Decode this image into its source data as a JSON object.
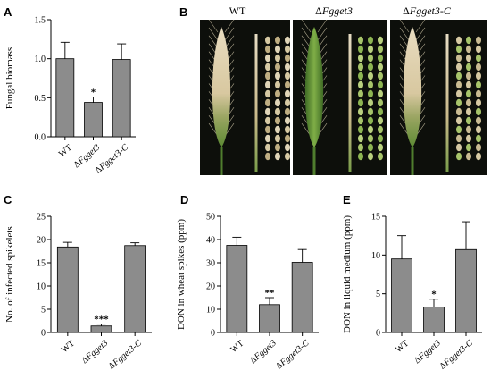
{
  "colors": {
    "bar_fill": "#8c8c8c",
    "photo_bg": "#0d0f0b"
  },
  "chart_data": [
    {
      "panel": "A",
      "type": "bar",
      "categories": [
        "WT",
        "ΔFgget3",
        "ΔFgget3-C"
      ],
      "values": [
        1.0,
        0.44,
        0.99
      ],
      "errors": [
        0.21,
        0.07,
        0.2
      ],
      "significance": [
        "",
        "*",
        ""
      ],
      "ylabel": "Fungal biomass",
      "ylim": [
        0,
        1.5
      ],
      "yticks": [
        0.0,
        0.5,
        1.0,
        1.5
      ],
      "ytick_labels": [
        "0.0",
        "0.5",
        "1.0",
        "1.5"
      ]
    },
    {
      "panel": "C",
      "type": "bar",
      "categories": [
        "WT",
        "ΔFgget3",
        "ΔFgget3-C"
      ],
      "values": [
        18.4,
        1.4,
        18.7
      ],
      "errors": [
        1.0,
        0.4,
        0.6
      ],
      "significance": [
        "",
        "***",
        ""
      ],
      "ylabel": "No. of infected spikelets",
      "ylim": [
        0,
        25
      ],
      "yticks": [
        0,
        5,
        10,
        15,
        20,
        25
      ],
      "ytick_labels": [
        "0",
        "5",
        "10",
        "15",
        "20",
        "25"
      ]
    },
    {
      "panel": "D",
      "type": "bar",
      "categories": [
        "WT",
        "ΔFgget3",
        "ΔFgget3-C"
      ],
      "values": [
        37.5,
        12.0,
        30.2
      ],
      "errors": [
        3.5,
        3.0,
        5.5
      ],
      "significance": [
        "",
        "**",
        ""
      ],
      "ylabel": "DON  in wheat spikes (ppm)",
      "ylim": [
        0,
        50
      ],
      "yticks": [
        0,
        10,
        20,
        30,
        40,
        50
      ],
      "ytick_labels": [
        "0",
        "10",
        "20",
        "30",
        "40",
        "50"
      ]
    },
    {
      "panel": "E",
      "type": "bar",
      "categories": [
        "WT",
        "ΔFgget3",
        "ΔFgget3-C"
      ],
      "values": [
        9.5,
        3.3,
        10.7
      ],
      "errors": [
        3.0,
        1.0,
        3.6
      ],
      "significance": [
        "",
        "*",
        ""
      ],
      "ylabel": "DON in liquid medium (ppm)",
      "ylim": [
        0,
        15
      ],
      "yticks": [
        0,
        5,
        10,
        15
      ],
      "ytick_labels": [
        "0",
        "5",
        "10",
        "15"
      ]
    }
  ],
  "photo_panel": {
    "letter": "B",
    "labels": [
      "WT",
      "ΔFgget3",
      "ΔFgget3-C"
    ]
  }
}
